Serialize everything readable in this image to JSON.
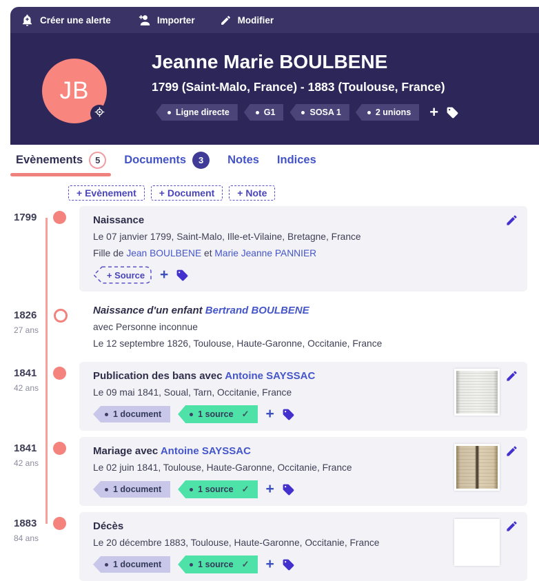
{
  "toolbar": {
    "create_alert_label": "Créer une alerte",
    "import_label": "Importer",
    "modify_label": "Modifier"
  },
  "header": {
    "initials": "JB",
    "name": "Jeanne Marie BOULBENE",
    "lifespan": "1799 (Saint-Malo, France) - 1883 (Toulouse, France)",
    "tags": [
      {
        "label": "Ligne directe"
      },
      {
        "label": "G1"
      },
      {
        "label": "SOSA 1"
      },
      {
        "label": "2 unions"
      }
    ]
  },
  "tabs": [
    {
      "label": "Evènements",
      "count": "5",
      "active": true
    },
    {
      "label": "Documents",
      "count": "3",
      "active": false
    },
    {
      "label": "Notes",
      "active": false
    },
    {
      "label": "Indices",
      "active": false
    }
  ],
  "actions": {
    "add_event": "+ Evènement",
    "add_document": "+ Document",
    "add_note": "+ Note"
  },
  "icons": {
    "add": "+",
    "check": "✓"
  },
  "timeline": {
    "events": [
      {
        "year": "1799",
        "age": "",
        "dot": "filled",
        "card": true,
        "italic": false,
        "editable": true,
        "title": [
          {
            "t": "Naissance"
          }
        ],
        "lines": [
          [
            {
              "t": "Le 07 janvier 1799, Saint-Malo, Ille-et-Vilaine, Bretagne, France"
            }
          ],
          [
            {
              "t": "Fille de "
            },
            {
              "t": "Jean BOULBENE",
              "link": true
            },
            {
              "t": " et "
            },
            {
              "t": "Marie Jeanne PANNIER",
              "link": true
            }
          ]
        ],
        "source_button": "+ Source",
        "chips": [],
        "thumb": null
      },
      {
        "year": "1826",
        "age": "27 ans",
        "dot": "hollow",
        "card": false,
        "italic": true,
        "editable": false,
        "title": [
          {
            "t": "Naissance d'un enfant "
          },
          {
            "t": "Bertrand BOULBENE",
            "link": true
          }
        ],
        "lines": [
          [
            {
              "t": "avec Personne inconnue"
            }
          ],
          [
            {
              "t": "Le 12 septembre 1826, Toulouse, Haute-Garonne, Occitanie, France"
            }
          ]
        ],
        "source_button": null,
        "chips": [],
        "thumb": null
      },
      {
        "year": "1841",
        "age": "42 ans",
        "dot": "filled",
        "card": true,
        "italic": false,
        "editable": true,
        "title": [
          {
            "t": "Publication des bans avec "
          },
          {
            "t": "Antoine SAYSSAC",
            "link": true
          }
        ],
        "lines": [
          [
            {
              "t": "Le 09 mai 1841, Soual, Tarn, Occitanie, France"
            }
          ]
        ],
        "source_button": null,
        "chips": [
          {
            "label": "1 document",
            "type": "document",
            "check": false
          },
          {
            "label": "1 source",
            "type": "source",
            "check": true
          }
        ],
        "thumb": "paper-light"
      },
      {
        "year": "1841",
        "age": "42 ans",
        "dot": "filled",
        "card": true,
        "italic": false,
        "editable": true,
        "title": [
          {
            "t": "Mariage avec "
          },
          {
            "t": "Antoine SAYSSAC",
            "link": true
          }
        ],
        "lines": [
          [
            {
              "t": "Le 02 juin 1841, Toulouse, Haute-Garonne, Occitanie, France"
            }
          ]
        ],
        "source_button": null,
        "chips": [
          {
            "label": "1 document",
            "type": "document",
            "check": false
          },
          {
            "label": "1 source",
            "type": "source",
            "check": true
          }
        ],
        "thumb": "book-tan"
      },
      {
        "year": "1883",
        "age": "84 ans",
        "dot": "filled",
        "card": true,
        "italic": false,
        "editable": true,
        "title": [
          {
            "t": "Décès"
          }
        ],
        "lines": [
          [
            {
              "t": "Le 20 décembre 1883, Toulouse, Haute-Garonne, Occitanie, France"
            }
          ]
        ],
        "source_button": null,
        "chips": [
          {
            "label": "1 document",
            "type": "document",
            "check": false
          },
          {
            "label": "1 source",
            "type": "source",
            "check": true
          }
        ],
        "thumb": "book-dark"
      }
    ]
  },
  "colors": {
    "toolbar_bg": "#3a3366",
    "header_bg": "#2d2759",
    "accent_coral": "#f5837d",
    "timeline_line": "#f7a09b",
    "link_blue": "#4556c8",
    "icon_indigo": "#4431cd",
    "card_bg": "#f2f2f7",
    "chip_document_bg": "#c9c7e9",
    "chip_source_bg": "#4fe2a8",
    "header_tag_bg": "#4a4479",
    "tab_underline": "#f0827e"
  }
}
